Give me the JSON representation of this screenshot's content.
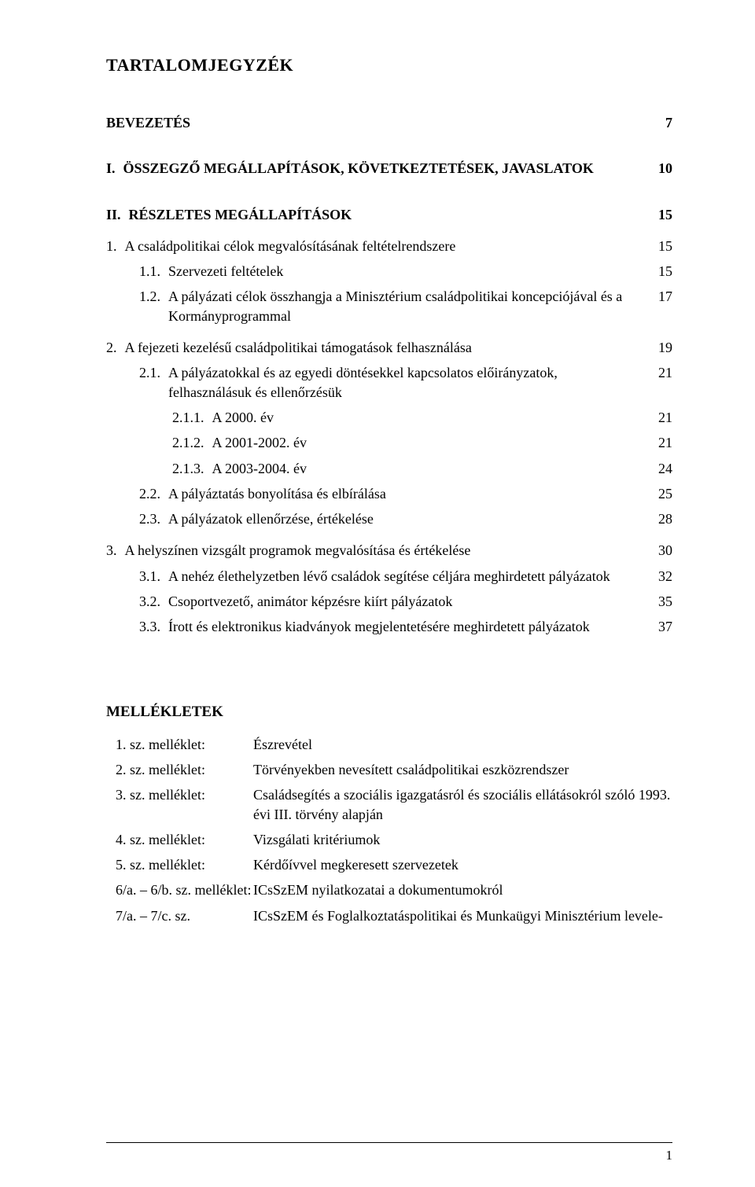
{
  "heading": "TARTALOMJEGYZÉK",
  "toc": [
    {
      "indent": 0,
      "num": "",
      "text": "BEVEZETÉS",
      "page": "7",
      "bold": true,
      "gap": ""
    },
    {
      "indent": 0,
      "num": "I.",
      "text": "ÖSSZEGZŐ MEGÁLLAPÍTÁSOK, KÖVETKEZTETÉSEK, JAVASLATOK",
      "page": "10",
      "bold": true,
      "gap": "gap-xl"
    },
    {
      "indent": 0,
      "num": "II.",
      "text": "RÉSZLETES MEGÁLLAPÍTÁSOK",
      "page": "15",
      "bold": true,
      "gap": "gap-xl"
    },
    {
      "indent": 1,
      "num": "1.",
      "text": "A családpolitikai célok megvalósításának feltételrendszere",
      "page": "15",
      "bold": false,
      "gap": "gap-l"
    },
    {
      "indent": 2,
      "num": "1.1.",
      "text": "Szervezeti feltételek",
      "page": "15",
      "bold": false,
      "gap": "gap-m"
    },
    {
      "indent": 2,
      "num": "1.2.",
      "text": "A pályázati célok összhangja a Minisztérium családpolitikai koncepciójával és a Kormányprogrammal",
      "page": "17",
      "bold": false,
      "gap": "gap-m"
    },
    {
      "indent": 1,
      "num": "2.",
      "text": "A fejezeti kezelésű családpolitikai támogatások felhasználása",
      "page": "19",
      "bold": false,
      "gap": "gap-l"
    },
    {
      "indent": 2,
      "num": "2.1.",
      "text": "A pályázatokkal és az egyedi döntésekkel kapcsolatos előirányzatok, felhasználásuk és ellenőrzésük",
      "page": "21",
      "bold": false,
      "gap": "gap-m"
    },
    {
      "indent": 3,
      "num": "2.1.1.",
      "text": "A 2000. év",
      "page": "21",
      "bold": false,
      "gap": "gap-m"
    },
    {
      "indent": 3,
      "num": "2.1.2.",
      "text": "A 2001-2002. év",
      "page": "21",
      "bold": false,
      "gap": "gap-m"
    },
    {
      "indent": 3,
      "num": "2.1.3.",
      "text": "A 2003-2004. év",
      "page": "24",
      "bold": false,
      "gap": "gap-m"
    },
    {
      "indent": 2,
      "num": "2.2.",
      "text": "A pályáztatás bonyolítása és elbírálása",
      "page": "25",
      "bold": false,
      "gap": "gap-m"
    },
    {
      "indent": 2,
      "num": "2.3.",
      "text": "A pályázatok ellenőrzése, értékelése",
      "page": "28",
      "bold": false,
      "gap": "gap-m"
    },
    {
      "indent": 1,
      "num": "3.",
      "text": "A helyszínen vizsgált programok megvalósítása és értékelése",
      "page": "30",
      "bold": false,
      "gap": "gap-l"
    },
    {
      "indent": 2,
      "num": "3.1.",
      "text": "A nehéz élethelyzetben lévő családok segítése céljára meghirdetett pályázatok",
      "page": "32",
      "bold": false,
      "gap": "gap-m"
    },
    {
      "indent": 2,
      "num": "3.2.",
      "text": "Csoportvezető, animátor képzésre kiírt pályázatok",
      "page": "35",
      "bold": false,
      "gap": "gap-m"
    },
    {
      "indent": 2,
      "num": "3.3.",
      "text": "Írott és elektronikus kiadványok megjelentetésére meghirdetett pályázatok",
      "page": "37",
      "bold": false,
      "gap": "gap-m"
    }
  ],
  "mell_heading": "MELLÉKLETEK",
  "mellekletek": [
    {
      "label": "1. sz. melléklet:",
      "text": "Észrevétel"
    },
    {
      "label": "2. sz. melléklet:",
      "text": "Törvényekben nevesített családpolitikai eszközrendszer"
    },
    {
      "label": "3. sz. melléklet:",
      "text": "Családsegítés a szociális igazgatásról és szociális ellátásokról szóló 1993. évi III. törvény alapján"
    },
    {
      "label": "4. sz. melléklet:",
      "text": "Vizsgálati kritériumok"
    },
    {
      "label": "5. sz. melléklet:",
      "text": "Kérdőívvel megkeresett szervezetek"
    },
    {
      "label": "6/a. – 6/b. sz. melléklet:",
      "text": "ICsSzEM nyilatkozatai a dokumentumokról"
    },
    {
      "label": "7/a. – 7/c. sz.",
      "text": "ICsSzEM és Foglalkoztatáspolitikai és Munkaügyi Minisztérium levele-"
    }
  ],
  "footer_page": "1"
}
